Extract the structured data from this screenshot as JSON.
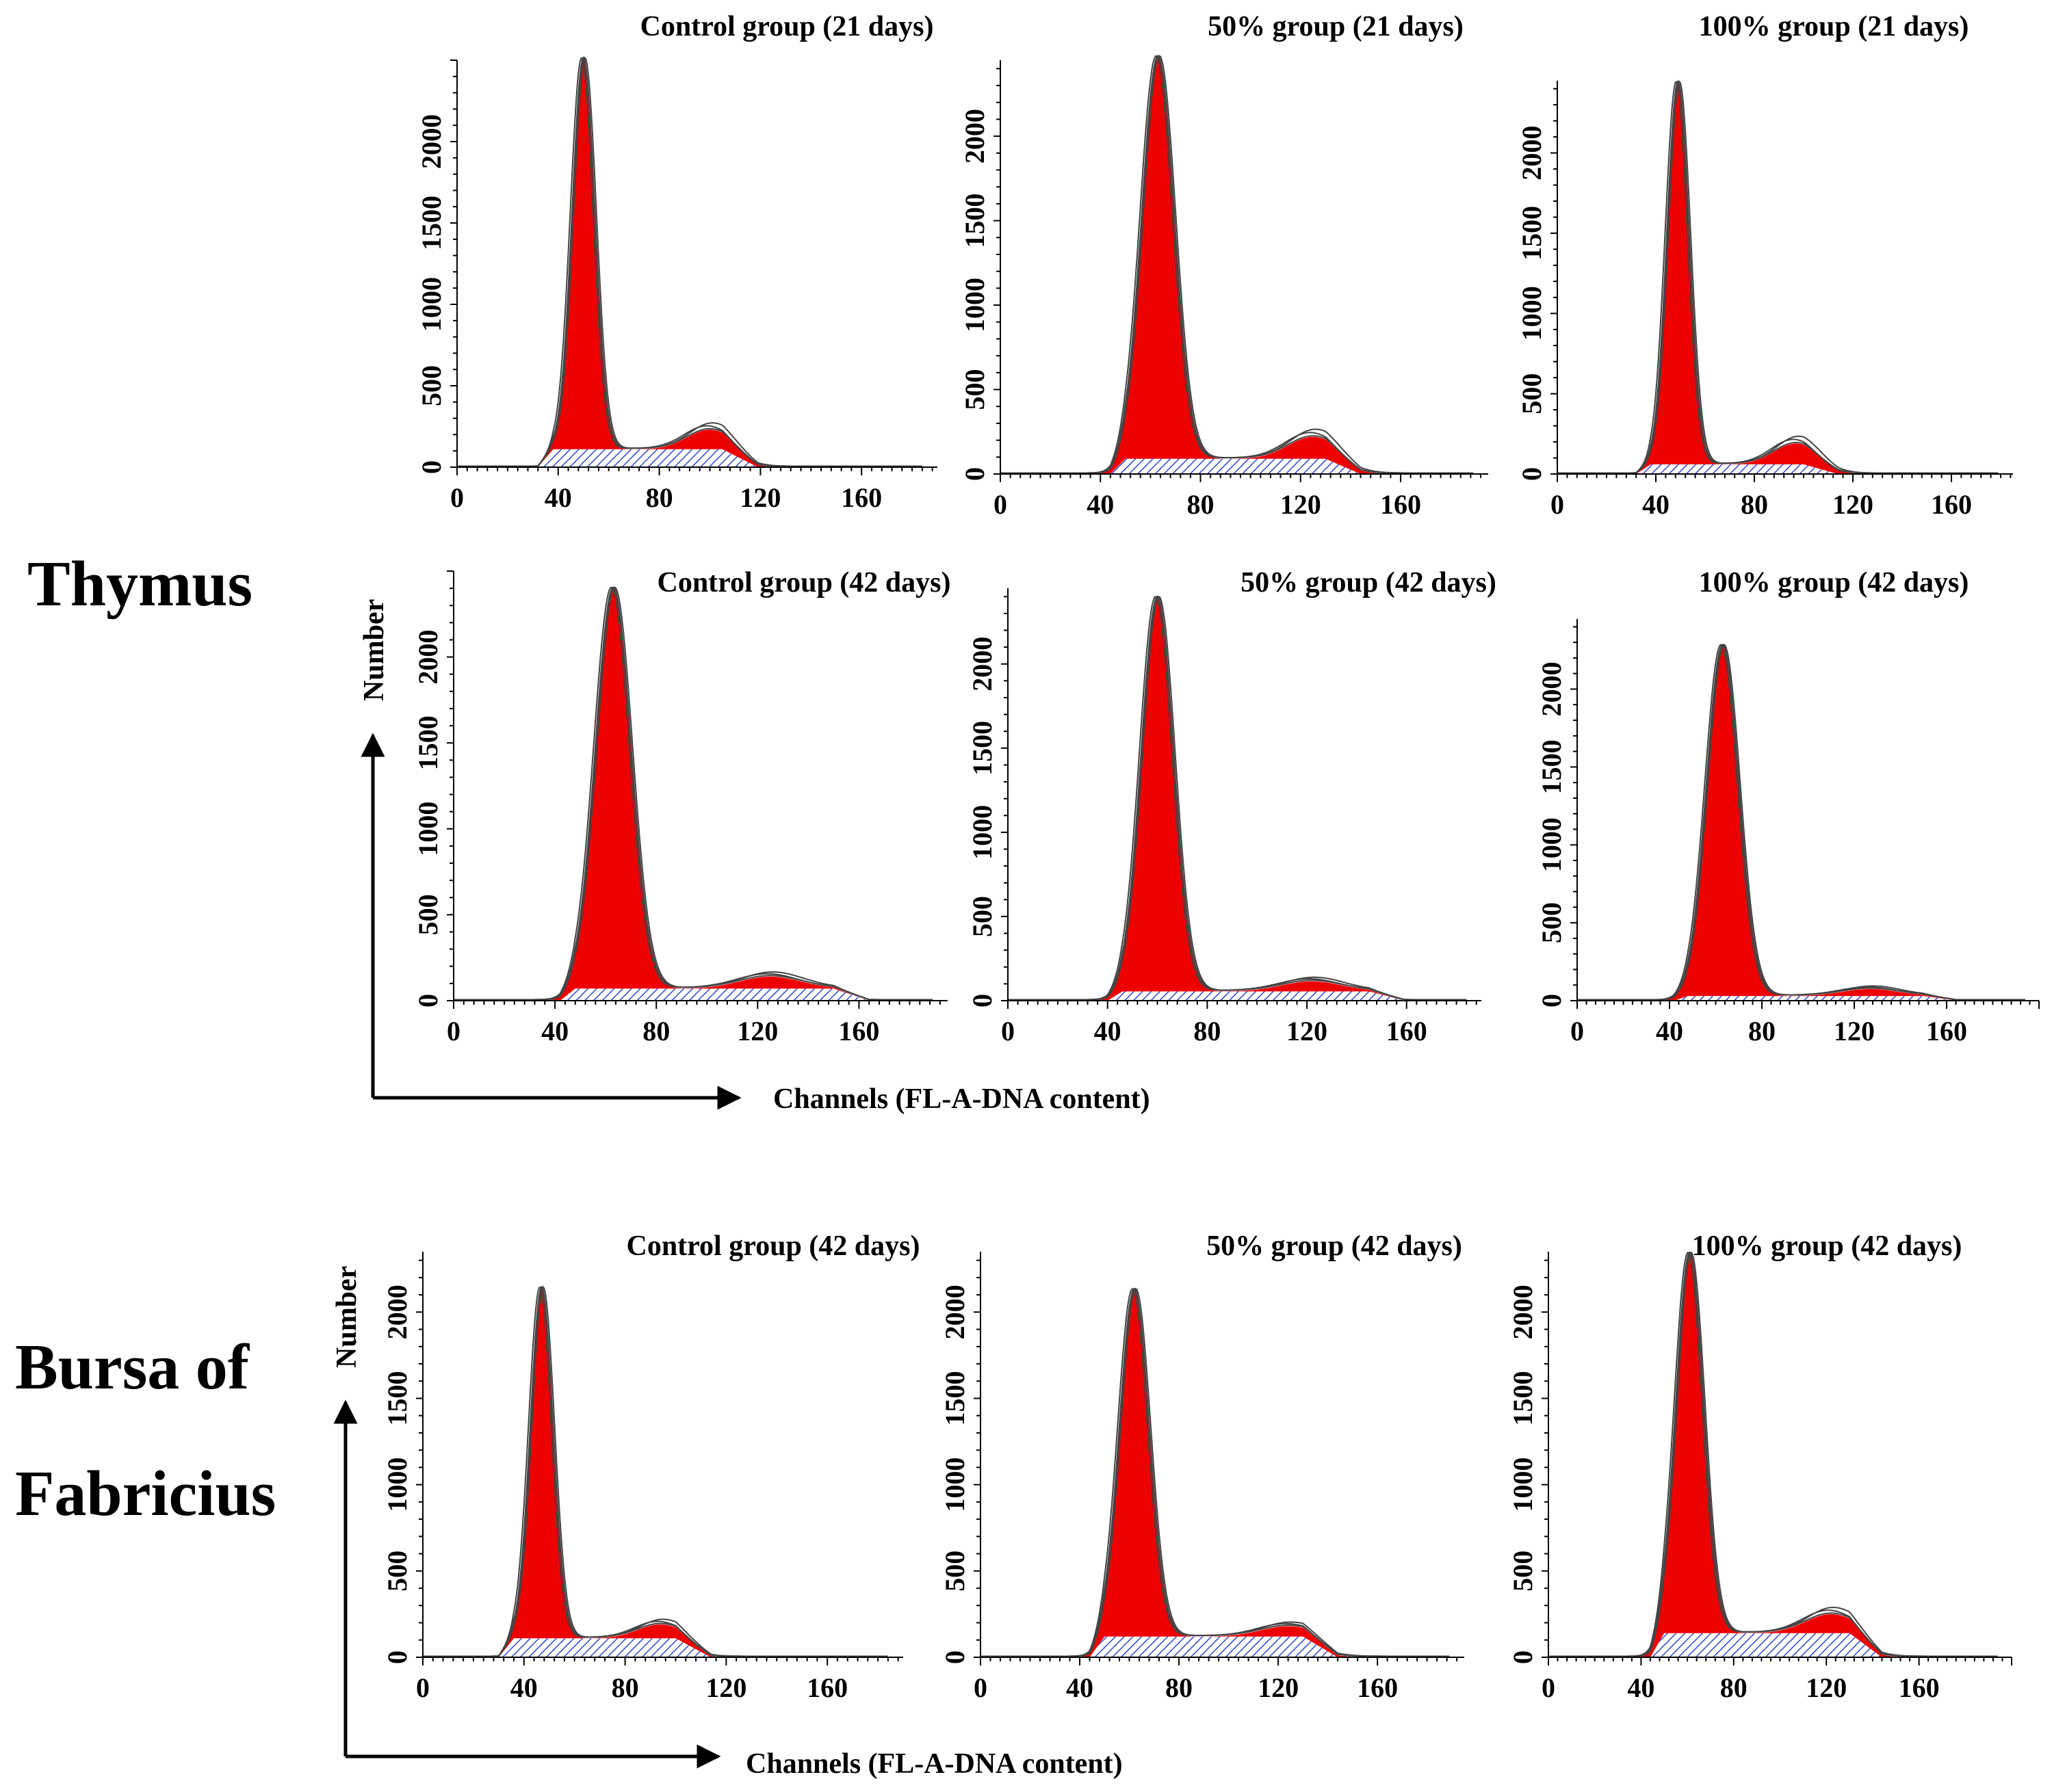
{
  "figure": {
    "sections": [
      {
        "label_lines": [
          "Thymus"
        ]
      },
      {
        "label_lines": [
          "Bursa of",
          "Fabricius"
        ]
      }
    ],
    "axis_titles": [
      {
        "xlabel": "Channels (FL-A-DNA content)",
        "ylabel": "Number"
      },
      {
        "xlabel": "Channels (FL-A-DNA content)",
        "ylabel": "Number"
      }
    ]
  },
  "colors": {
    "g1_fill": "#ee0000",
    "s_phase_hatch": "#3344cc",
    "outline": "#444444",
    "axis": "#000000"
  },
  "chart_data": [
    {
      "type": "area",
      "section": "Thymus",
      "title": "Control group (21 days)",
      "xlabel": "Channels (FL-A-DNA content)",
      "ylabel": "Number",
      "xlim": [
        0,
        190
      ],
      "ylim": [
        0,
        2500
      ],
      "xticks": [
        0,
        40,
        80,
        120,
        160
      ],
      "yticks": [
        0,
        500,
        1000,
        1500,
        2000
      ],
      "g1_peak": {
        "channel": 50,
        "count": 2400,
        "width": 4.5
      },
      "g2_peak": {
        "channel": 100,
        "count": 120,
        "width": 9
      },
      "s_phase_level": 110,
      "s_range": [
        38,
        105
      ]
    },
    {
      "type": "area",
      "section": "Thymus",
      "title": "50% group (21 days)",
      "xlabel": "Channels (FL-A-DNA content)",
      "ylabel": "Number",
      "xlim": [
        0,
        195
      ],
      "ylim": [
        0,
        2450
      ],
      "xticks": [
        0,
        40,
        80,
        120,
        160
      ],
      "yticks": [
        0,
        500,
        1000,
        1500,
        2000
      ],
      "g1_peak": {
        "channel": 63,
        "count": 2380,
        "width": 6.5
      },
      "g2_peak": {
        "channel": 125,
        "count": 130,
        "width": 10
      },
      "s_phase_level": 90,
      "s_range": [
        50,
        130
      ]
    },
    {
      "type": "area",
      "section": "Thymus",
      "title": "100% group (21 days)",
      "xlabel": "Channels (FL-A-DNA content)",
      "ylabel": "Number",
      "xlim": [
        0,
        185
      ],
      "ylim": [
        0,
        2450
      ],
      "xticks": [
        0,
        40,
        80,
        120,
        160
      ],
      "yticks": [
        0,
        500,
        1000,
        1500,
        2000
      ],
      "g1_peak": {
        "channel": 49,
        "count": 2380,
        "width": 4.5
      },
      "g2_peak": {
        "channel": 97,
        "count": 130,
        "width": 9
      },
      "s_phase_level": 60,
      "s_range": [
        38,
        100
      ]
    },
    {
      "type": "area",
      "section": "Thymus",
      "title": "Control group (42 days)",
      "xlabel": "Channels (FL-A-DNA content)",
      "ylabel": "Number",
      "xlim": [
        0,
        195
      ],
      "ylim": [
        0,
        2500
      ],
      "xticks": [
        0,
        40,
        80,
        120,
        160
      ],
      "yticks": [
        0,
        500,
        1000,
        1500,
        2000
      ],
      "g1_peak": {
        "channel": 63,
        "count": 2330,
        "width": 7
      },
      "g2_peak": {
        "channel": 125,
        "count": 70,
        "width": 12
      },
      "s_phase_level": 70,
      "s_range": [
        48,
        150
      ]
    },
    {
      "type": "area",
      "section": "Thymus",
      "title": "50% group (42 days)",
      "xlabel": "Channels (FL-A-DNA content)",
      "ylabel": "Number",
      "xlim": [
        0,
        190
      ],
      "ylim": [
        0,
        2450
      ],
      "xticks": [
        0,
        40,
        80,
        120,
        160
      ],
      "yticks": [
        0,
        500,
        1000,
        1500,
        2000
      ],
      "g1_peak": {
        "channel": 60,
        "count": 2340,
        "width": 6.5
      },
      "g2_peak": {
        "channel": 122,
        "count": 60,
        "width": 12
      },
      "s_phase_level": 55,
      "s_range": [
        46,
        145
      ]
    },
    {
      "type": "area",
      "section": "Thymus",
      "title": "100% group (42 days)",
      "xlabel": "Channels (FL-A-DNA content)",
      "ylabel": "Number",
      "xlim": [
        0,
        200
      ],
      "ylim": [
        0,
        2450
      ],
      "xticks": [
        0,
        40,
        80,
        120,
        160
      ],
      "yticks": [
        0,
        500,
        1000,
        1500,
        2000
      ],
      "g1_peak": {
        "channel": 63,
        "count": 2250,
        "width": 7
      },
      "g2_peak": {
        "channel": 127,
        "count": 45,
        "width": 12
      },
      "s_phase_level": 30,
      "s_range": [
        48,
        150
      ]
    },
    {
      "type": "area",
      "section": "Bursa of Fabricius",
      "title": "Control group (42 days)",
      "xlabel": "Channels (FL-A-DNA content)",
      "ylabel": "Number",
      "xlim": [
        0,
        190
      ],
      "ylim": [
        0,
        2350
      ],
      "xticks": [
        0,
        40,
        80,
        120,
        160
      ],
      "yticks": [
        0,
        500,
        1000,
        1500,
        2000
      ],
      "g1_peak": {
        "channel": 47,
        "count": 2030,
        "width": 4.5
      },
      "g2_peak": {
        "channel": 94,
        "count": 80,
        "width": 9
      },
      "s_phase_level": 110,
      "s_range": [
        36,
        100
      ]
    },
    {
      "type": "area",
      "section": "Bursa of Fabricius",
      "title": "50% group (42 days)",
      "xlabel": "Channels (FL-A-DNA content)",
      "ylabel": "Number",
      "xlim": [
        0,
        195
      ],
      "ylim": [
        0,
        2350
      ],
      "xticks": [
        0,
        40,
        80,
        120,
        160
      ],
      "yticks": [
        0,
        500,
        1000,
        1500,
        2000
      ],
      "g1_peak": {
        "channel": 62,
        "count": 2010,
        "width": 6
      },
      "g2_peak": {
        "channel": 124,
        "count": 60,
        "width": 11
      },
      "s_phase_level": 120,
      "s_range": [
        50,
        130
      ]
    },
    {
      "type": "area",
      "section": "Bursa of Fabricius",
      "title": "100% group (42 days)",
      "xlabel": "Channels (FL-A-DNA content)",
      "ylabel": "Number",
      "xlim": [
        0,
        200
      ],
      "ylim": [
        0,
        2350
      ],
      "xticks": [
        0,
        40,
        80,
        120,
        160
      ],
      "yticks": [
        0,
        500,
        1000,
        1500,
        2000
      ],
      "g1_peak": {
        "channel": 61,
        "count": 2200,
        "width": 6
      },
      "g2_peak": {
        "channel": 122,
        "count": 110,
        "width": 11
      },
      "s_phase_level": 140,
      "s_range": [
        50,
        130
      ]
    }
  ]
}
